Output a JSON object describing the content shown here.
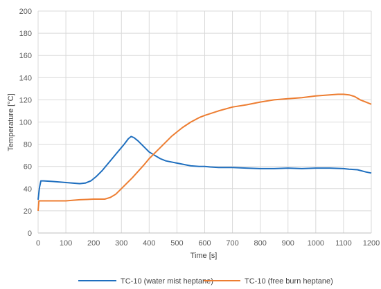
{
  "chart_data": {
    "type": "line",
    "title": "",
    "xlabel": "Time [s]",
    "ylabel": "Temperature [°C]",
    "xlim": [
      0,
      1200
    ],
    "ylim": [
      0,
      200
    ],
    "xticks": [
      0,
      100,
      200,
      300,
      400,
      500,
      600,
      700,
      800,
      900,
      1000,
      1100,
      1200
    ],
    "yticks": [
      0,
      20,
      40,
      60,
      80,
      100,
      120,
      140,
      160,
      180,
      200
    ],
    "grid": true,
    "legend_position": "bottom",
    "series": [
      {
        "name": "TC-10 (water mist heptane)",
        "color": "#1f6fbf",
        "x": [
          0,
          5,
          10,
          20,
          50,
          100,
          150,
          170,
          190,
          210,
          230,
          250,
          270,
          290,
          310,
          325,
          335,
          345,
          360,
          380,
          400,
          420,
          440,
          460,
          480,
          500,
          520,
          550,
          580,
          600,
          620,
          650,
          680,
          700,
          750,
          800,
          850,
          900,
          950,
          1000,
          1050,
          1100,
          1120,
          1150,
          1180,
          1200
        ],
        "y": [
          30,
          41,
          47,
          47,
          46.5,
          45.5,
          44.5,
          45,
          47,
          51,
          56,
          62,
          68,
          74,
          80,
          85,
          87,
          86,
          83,
          78,
          73,
          70,
          67,
          65,
          64,
          63,
          62,
          60.5,
          60,
          60,
          59.5,
          59,
          59,
          59,
          58.5,
          58,
          58,
          58.5,
          58,
          58.5,
          58.5,
          58,
          57.5,
          57,
          55,
          54
        ]
      },
      {
        "name": "TC-10 (free burn heptane)",
        "color": "#ed7d31",
        "x": [
          0,
          3,
          10,
          50,
          100,
          150,
          200,
          240,
          260,
          280,
          300,
          320,
          340,
          360,
          380,
          400,
          420,
          440,
          460,
          480,
          500,
          520,
          550,
          580,
          600,
          650,
          700,
          750,
          800,
          850,
          900,
          950,
          1000,
          1050,
          1080,
          1100,
          1120,
          1140,
          1160,
          1180,
          1200
        ],
        "y": [
          20,
          29,
          29,
          29,
          29,
          30,
          30.5,
          30.5,
          32,
          35,
          40,
          45,
          50,
          55.5,
          61,
          67,
          72,
          77,
          82,
          87,
          91,
          95,
          100,
          104,
          106,
          110,
          113.5,
          115.5,
          118,
          120,
          121,
          122,
          123.5,
          124.5,
          125,
          125,
          124.5,
          123,
          120,
          118,
          116
        ]
      }
    ]
  }
}
